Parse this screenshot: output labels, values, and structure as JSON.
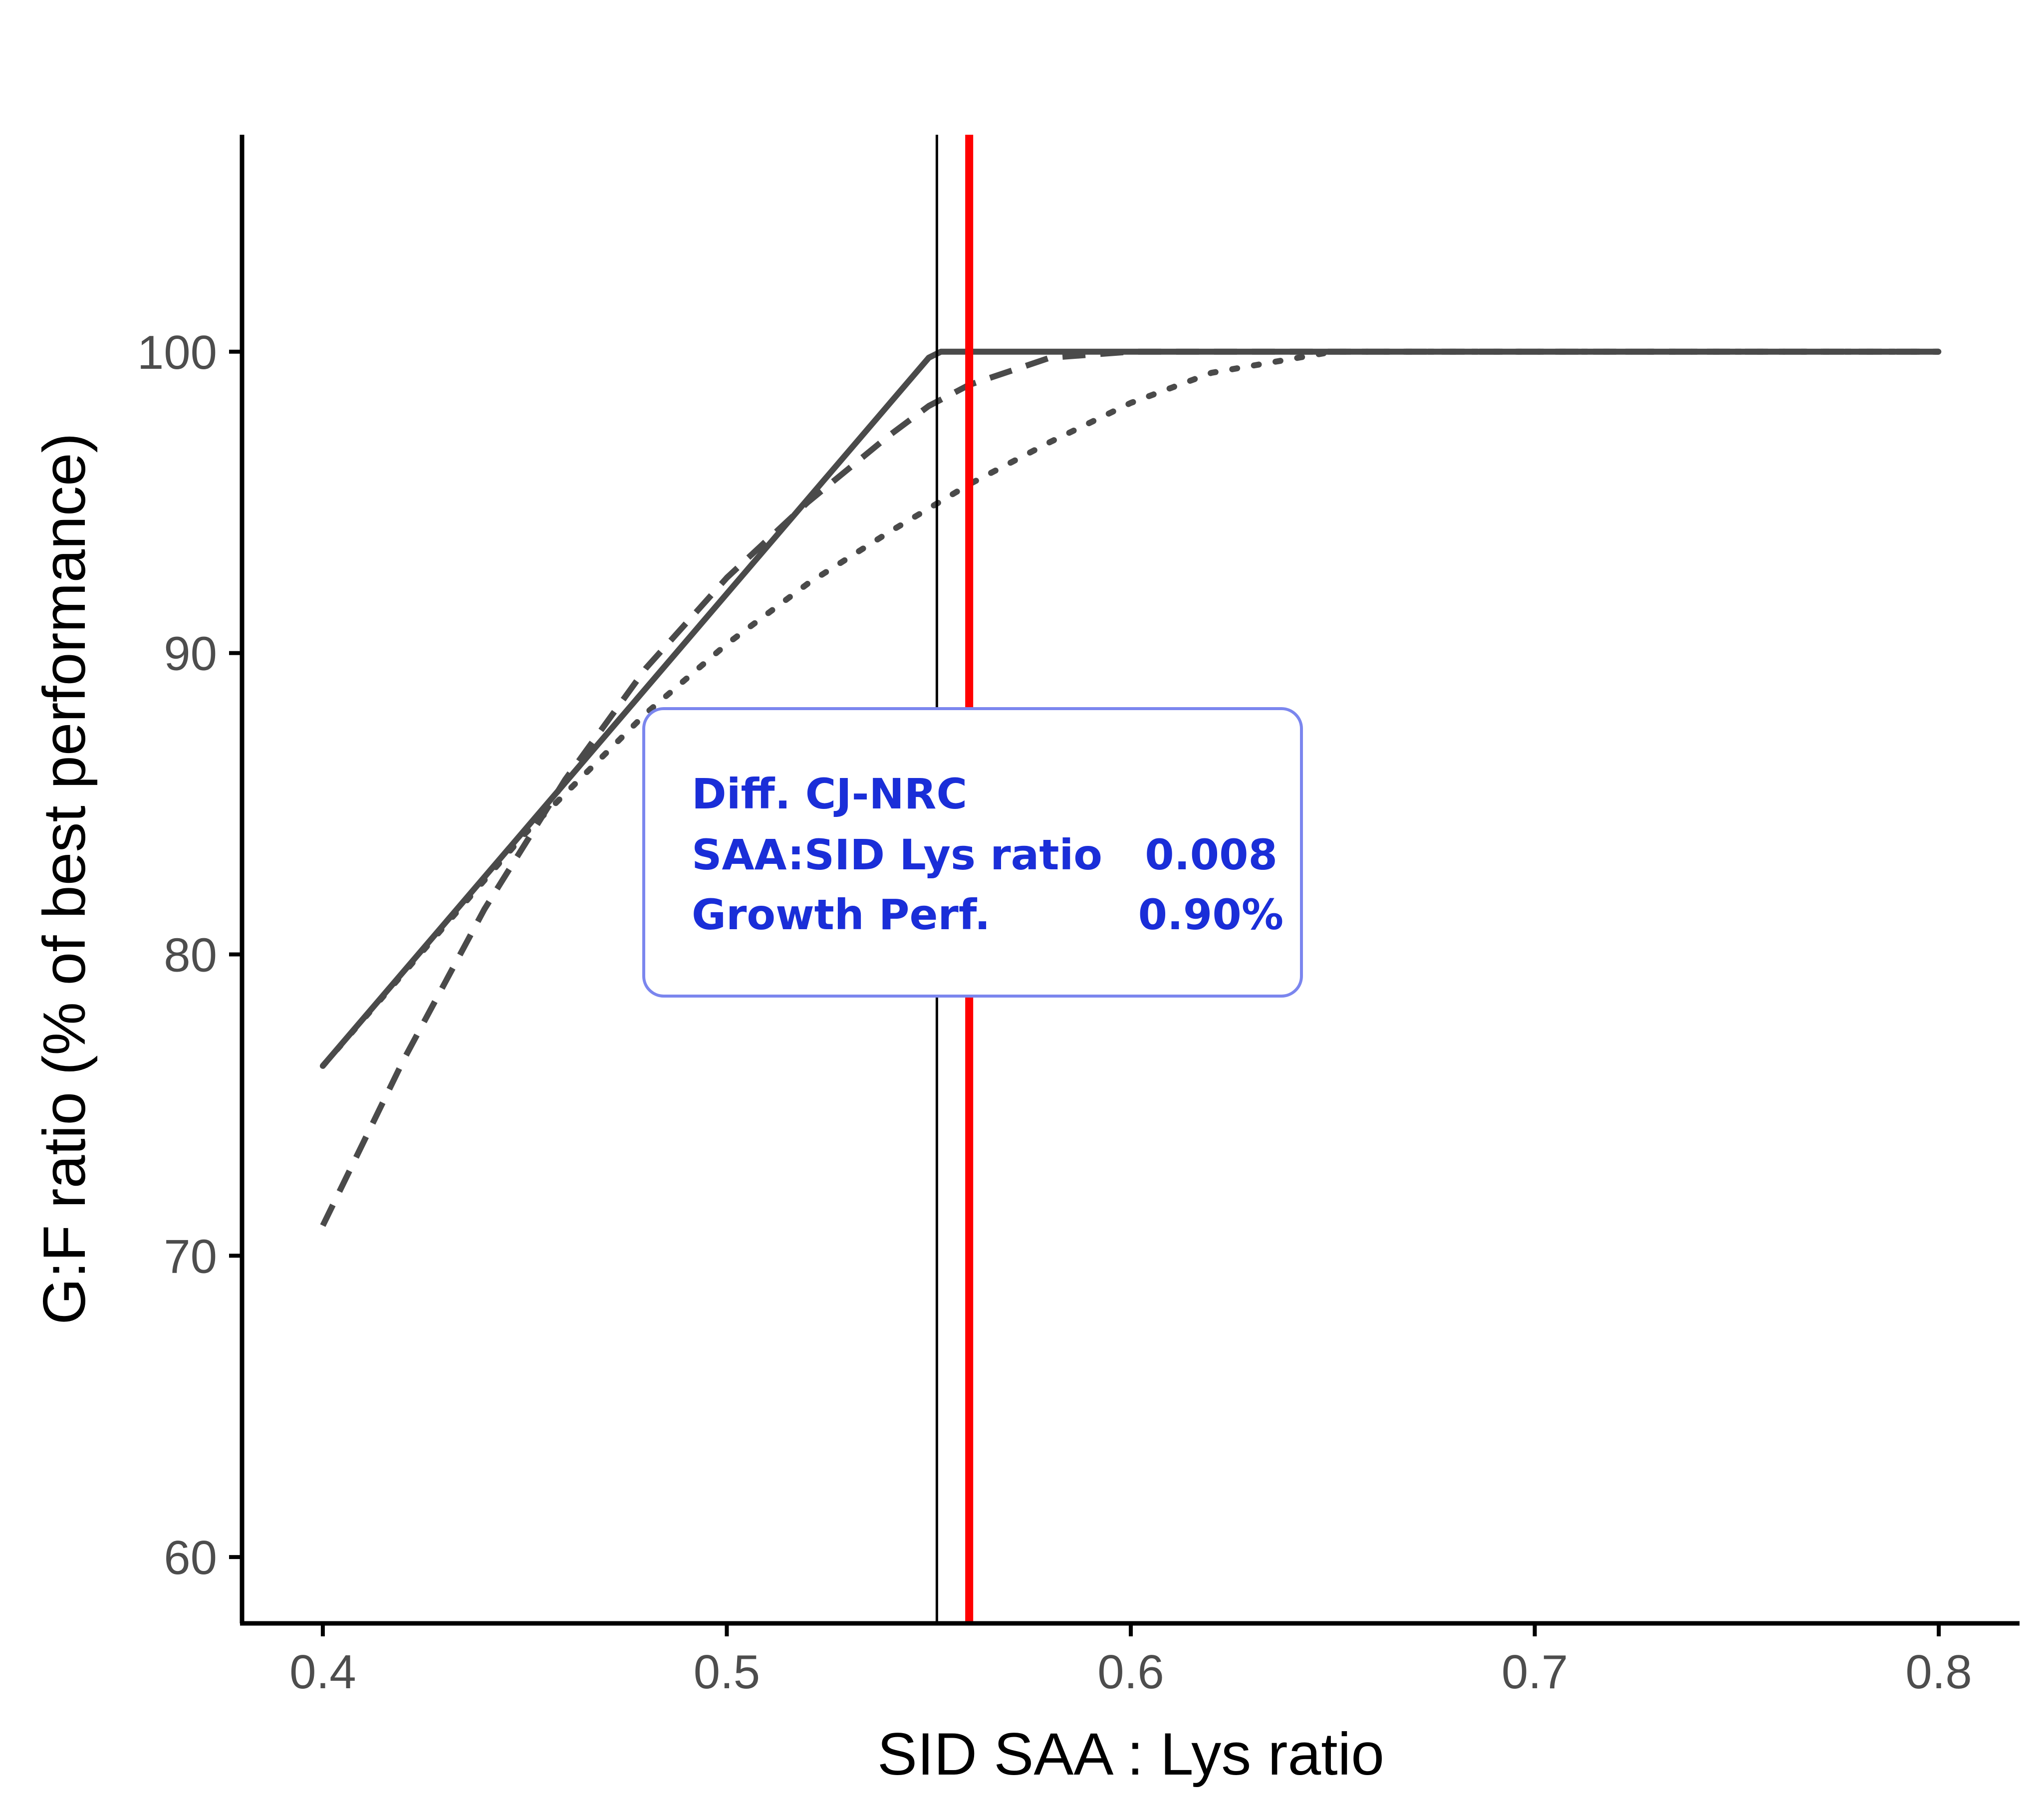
{
  "chart_data": {
    "type": "line",
    "title": "",
    "xlabel": "SID SAA : Lys ratio",
    "ylabel": "G:F ratio (% of best performance)",
    "xlim": [
      0.38,
      0.82
    ],
    "ylim": [
      57.8,
      107.2
    ],
    "x_ticks": [
      0.4,
      0.5,
      0.6,
      0.7,
      0.8
    ],
    "x_tick_labels": [
      "0.4",
      "0.5",
      "0.6",
      "0.7",
      "0.8"
    ],
    "y_ticks": [
      60,
      70,
      80,
      90,
      100
    ],
    "y_tick_labels": [
      "60",
      "70",
      "80",
      "90",
      "100"
    ],
    "grid": false,
    "legend": "none",
    "colors": {
      "curve": "#4a4a4a",
      "red_line": "#ff0000",
      "black_line": "#000000",
      "annotation_text": "#1a2ed8",
      "annotation_border": "#7b86ee"
    },
    "series": [
      {
        "style": "solid",
        "x": [
          0.4,
          0.55,
          0.553,
          0.8
        ],
        "y": [
          76.3,
          99.8,
          100.0,
          100.0
        ]
      },
      {
        "style": "dashed",
        "x": [
          0.4,
          0.42,
          0.44,
          0.46,
          0.48,
          0.5,
          0.52,
          0.54,
          0.55,
          0.56,
          0.58,
          0.6,
          0.7,
          0.8
        ],
        "y": [
          71.0,
          76.5,
          81.5,
          85.8,
          89.5,
          92.5,
          95.0,
          97.2,
          98.2,
          98.9,
          99.8,
          100.0,
          100.0,
          100.0
        ]
      },
      {
        "style": "dotted",
        "x": [
          0.4,
          0.45,
          0.48,
          0.5,
          0.52,
          0.54,
          0.56,
          0.58,
          0.6,
          0.62,
          0.65,
          0.7,
          0.8
        ],
        "y": [
          76.3,
          84.0,
          88.0,
          90.3,
          92.3,
          94.0,
          95.6,
          97.0,
          98.3,
          99.3,
          100.0,
          100.0,
          100.0
        ]
      }
    ],
    "vlines": [
      {
        "name": "black",
        "x": 0.552
      },
      {
        "name": "red",
        "x": 0.56
      }
    ],
    "annotation": {
      "title": "Diff. CJ-NRC",
      "rows": [
        {
          "label": "SAA:SID Lys ratio",
          "value": "0.008"
        },
        {
          "label": "Growth Perf.",
          "value": "0.90%"
        }
      ]
    }
  }
}
